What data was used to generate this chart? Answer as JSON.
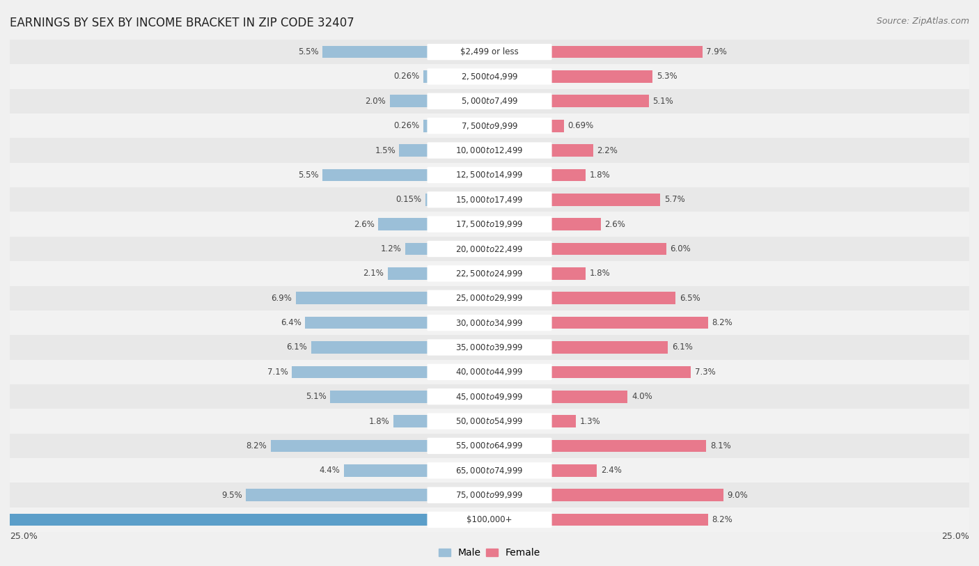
{
  "title": "EARNINGS BY SEX BY INCOME BRACKET IN ZIP CODE 32407",
  "source": "Source: ZipAtlas.com",
  "categories": [
    "$2,499 or less",
    "$2,500 to $4,999",
    "$5,000 to $7,499",
    "$7,500 to $9,999",
    "$10,000 to $12,499",
    "$12,500 to $14,999",
    "$15,000 to $17,499",
    "$17,500 to $19,999",
    "$20,000 to $22,499",
    "$22,500 to $24,999",
    "$25,000 to $29,999",
    "$30,000 to $34,999",
    "$35,000 to $39,999",
    "$40,000 to $44,999",
    "$45,000 to $49,999",
    "$50,000 to $54,999",
    "$55,000 to $64,999",
    "$65,000 to $74,999",
    "$75,000 to $99,999",
    "$100,000+"
  ],
  "male_values": [
    5.5,
    0.26,
    2.0,
    0.26,
    1.5,
    5.5,
    0.15,
    2.6,
    1.2,
    2.1,
    6.9,
    6.4,
    6.1,
    7.1,
    5.1,
    1.8,
    8.2,
    4.4,
    9.5,
    23.6
  ],
  "female_values": [
    7.9,
    5.3,
    5.1,
    0.69,
    2.2,
    1.8,
    5.7,
    2.6,
    6.0,
    1.8,
    6.5,
    8.2,
    6.1,
    7.3,
    4.0,
    1.3,
    8.1,
    2.4,
    9.0,
    8.2
  ],
  "male_color": "#9bbfd8",
  "female_color": "#e8798c",
  "male_highlight_color": "#5b9ec9",
  "row_color_even": "#e8e8e8",
  "row_color_odd": "#f2f2f2",
  "background_color": "#f0f0f0",
  "label_pill_color": "#ffffff",
  "xlim": 25.0,
  "legend_male": "Male",
  "legend_female": "Female",
  "title_fontsize": 12,
  "label_fontsize": 8.5,
  "source_fontsize": 9,
  "value_fontsize": 8.5
}
